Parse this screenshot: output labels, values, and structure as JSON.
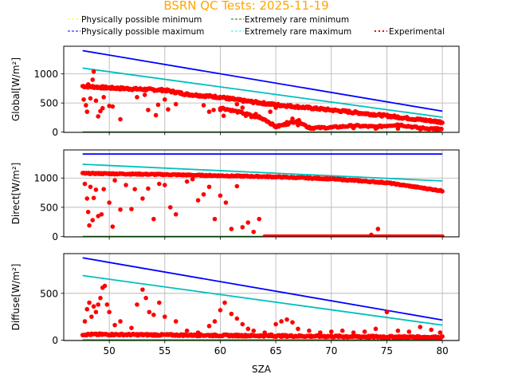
{
  "chart_data": {
    "type": "scatter",
    "title": "BSRN QC Tests: 2025-11-19",
    "title_color": "#ffa500",
    "xlabel": "SZA",
    "xlim": [
      45.9,
      81.5
    ],
    "xticks": [
      50,
      55,
      60,
      65,
      70,
      75,
      80
    ],
    "grid": true,
    "legend": {
      "placement": "top",
      "entries": [
        {
          "label": "Physically possible minimum",
          "color": "#ffff00",
          "style": "dashed"
        },
        {
          "label": "Extremely rare minimum",
          "color": "#008000",
          "style": "dashed"
        },
        {
          "label": "Physically possible maximum",
          "color": "#0000ff",
          "style": "dashed"
        },
        {
          "label": "Extremely rare maximum",
          "color": "#00ffff",
          "style": "dashed"
        },
        {
          "label": "Experimental",
          "color": "#ff0000",
          "style": "dotted"
        }
      ]
    },
    "panels": [
      {
        "name": "global",
        "ylabel": "Global[W/m²]",
        "ylim": [
          -5,
          1475
        ],
        "yticks": [
          0,
          500,
          1000
        ],
        "lines": [
          {
            "name": "Physically possible maximum",
            "color": "#0000ff",
            "x": [
              47.6,
              80
            ],
            "y": [
              1400,
              360
            ]
          },
          {
            "name": "Extremely rare maximum",
            "color": "#00bfbf",
            "x": [
              47.6,
              80
            ],
            "y": [
              1100,
              255
            ]
          },
          {
            "name": "Extremely rare minimum",
            "color": "#008000",
            "x": [
              47.6,
              80
            ],
            "y": [
              0,
              0
            ]
          }
        ],
        "scatter_main": {
          "x": [
            47.6,
            50,
            55,
            57,
            60,
            62,
            65,
            70,
            75,
            80
          ],
          "y": [
            790,
            760,
            720,
            650,
            600,
            540,
            470,
            380,
            280,
            170
          ]
        },
        "scatter_outliers": {
          "x": [
            47.7,
            47.9,
            48.0,
            48.1,
            48.3,
            48.5,
            48.6,
            48.8,
            49.0,
            49.2,
            49.4,
            49.5,
            50.0,
            50.3,
            51.0,
            52.5,
            53.2,
            53.5,
            54.2,
            54.4,
            55.0,
            55.3,
            56.0,
            58.5,
            59.0,
            59.4,
            60.0,
            60.3,
            60.8,
            61.5,
            62.0,
            62.3,
            62.8,
            63.2,
            63.5,
            64.0,
            64.5,
            65.0,
            65.3,
            66.0,
            66.5,
            67.0,
            68.0,
            70.0,
            72.0,
            74.0,
            76.0,
            78.0,
            79.5
          ],
          "y": [
            560,
            460,
            350,
            820,
            580,
            900,
            1040,
            540,
            270,
            360,
            410,
            600,
            450,
            440,
            220,
            600,
            640,
            380,
            290,
            470,
            560,
            390,
            480,
            460,
            350,
            380,
            380,
            280,
            560,
            480,
            420,
            280,
            260,
            310,
            270,
            490,
            350,
            420,
            120,
            170,
            230,
            120,
            90,
            80,
            70,
            60,
            60,
            50,
            40
          ]
        },
        "scatter_trend2": {
          "x": [
            60,
            62,
            64,
            65,
            66,
            67,
            68,
            70,
            72,
            74,
            76,
            78,
            80
          ],
          "y": [
            420,
            330,
            220,
            90,
            140,
            200,
            70,
            80,
            110,
            90,
            130,
            70,
            50
          ]
        }
      },
      {
        "name": "direct",
        "ylabel": "Direct[W/m²]",
        "ylim": [
          -5,
          1480
        ],
        "yticks": [
          0,
          500,
          1000
        ],
        "lines": [
          {
            "name": "Physically possible maximum",
            "color": "#0000ff",
            "x": [
              47.6,
              80
            ],
            "y": [
              1410,
              1410
            ]
          },
          {
            "name": "Extremely rare maximum",
            "color": "#00bfbf",
            "x": [
              47.6,
              80
            ],
            "y": [
              1235,
              950
            ]
          },
          {
            "name": "Extremely rare minimum",
            "color": "#008000",
            "x": [
              47.6,
              80
            ],
            "y": [
              0,
              0
            ]
          }
        ],
        "scatter_main": {
          "x": [
            47.6,
            50,
            55,
            60,
            65,
            70,
            75,
            80
          ],
          "y": [
            1080,
            1075,
            1060,
            1040,
            1020,
            985,
            920,
            780
          ]
        },
        "scatter_outliers": {
          "x": [
            47.8,
            48.0,
            48.1,
            48.2,
            48.3,
            48.5,
            48.6,
            48.8,
            49.0,
            49.3,
            49.5,
            50.0,
            50.3,
            50.5,
            51.0,
            51.5,
            52.0,
            52.3,
            53.0,
            53.5,
            54.0,
            54.5,
            55.0,
            55.5,
            56.0,
            57.0,
            57.5,
            58.0,
            58.5,
            59.0,
            59.5,
            60.0,
            60.5,
            61.0,
            61.5,
            62.0,
            62.5,
            63.0,
            63.5,
            73.6,
            74.2
          ],
          "y": [
            900,
            650,
            420,
            190,
            850,
            280,
            660,
            800,
            350,
            380,
            810,
            580,
            170,
            960,
            460,
            880,
            470,
            810,
            650,
            820,
            300,
            900,
            880,
            500,
            380,
            940,
            980,
            620,
            720,
            850,
            300,
            700,
            580,
            130,
            860,
            160,
            240,
            80,
            300,
            30,
            130
          ]
        },
        "scatter_zero": {
          "x": [
            48.5,
            64.0,
            80.0
          ],
          "y": [
            0,
            0,
            0
          ]
        }
      },
      {
        "name": "diffuse",
        "ylabel": "Diffuse[W/m²]",
        "ylim": [
          -5,
          925
        ],
        "yticks": [
          0,
          500
        ],
        "lines": [
          {
            "name": "Physically possible maximum",
            "color": "#0000ff",
            "x": [
              47.6,
              80
            ],
            "y": [
              880,
              215
            ]
          },
          {
            "name": "Extremely rare maximum",
            "color": "#00bfbf",
            "x": [
              47.6,
              80
            ],
            "y": [
              690,
              160
            ]
          },
          {
            "name": "Extremely rare minimum",
            "color": "#008000",
            "x": [
              47.6,
              80
            ],
            "y": [
              0,
              0
            ]
          }
        ],
        "scatter_main": {
          "x": [
            47.6,
            50,
            55,
            60,
            65,
            70,
            75,
            80
          ],
          "y": [
            60,
            60,
            55,
            50,
            45,
            40,
            35,
            30
          ]
        },
        "scatter_outliers": {
          "x": [
            47.8,
            48.0,
            48.2,
            48.4,
            48.6,
            48.8,
            49.0,
            49.2,
            49.4,
            49.6,
            49.8,
            50.0,
            50.5,
            51.0,
            52.0,
            52.5,
            53.0,
            53.3,
            53.6,
            54.0,
            54.5,
            55.0,
            56.0,
            57.0,
            58.0,
            59.0,
            59.5,
            60.0,
            60.4,
            61.0,
            61.5,
            62.0,
            62.5,
            63.0,
            64.0,
            64.6,
            65.0,
            65.5,
            66.0,
            66.5,
            67.0,
            68.0,
            69.0,
            70.0,
            71.0,
            72.0,
            73.0,
            74.0,
            75.0,
            76.0,
            77.0,
            78.0,
            79.0,
            79.8
          ],
          "y": [
            200,
            330,
            400,
            250,
            360,
            300,
            380,
            450,
            560,
            580,
            380,
            300,
            160,
            200,
            130,
            380,
            540,
            450,
            300,
            270,
            400,
            250,
            200,
            100,
            80,
            150,
            200,
            320,
            400,
            280,
            230,
            170,
            120,
            100,
            80,
            60,
            170,
            200,
            220,
            190,
            120,
            100,
            80,
            90,
            100,
            80,
            90,
            120,
            300,
            100,
            90,
            140,
            110,
            80
          ]
        }
      }
    ]
  }
}
